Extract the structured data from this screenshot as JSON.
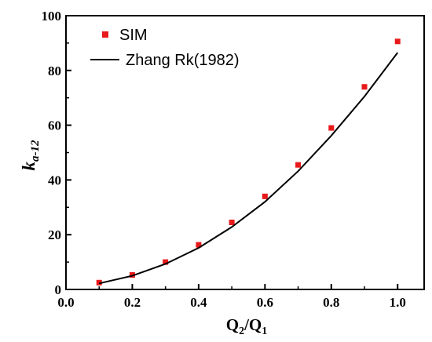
{
  "chart_data": {
    "type": "scatter",
    "xlabel": {
      "main": "Q",
      "sub1": "2",
      "slash": "/",
      "main2": "Q",
      "sub2": "1"
    },
    "ylabel": {
      "main": "k",
      "sub": "a-12"
    },
    "xlim": [
      0.0,
      1.08
    ],
    "ylim": [
      0,
      100
    ],
    "x_ticks": [
      "0.0",
      "0.2",
      "0.4",
      "0.6",
      "0.8",
      "1.0"
    ],
    "y_ticks": [
      "0",
      "20",
      "40",
      "60",
      "80",
      "100"
    ],
    "legend_position": "top-left",
    "series": [
      {
        "name": "SIM",
        "kind": "scatter",
        "color": "#e8191a",
        "x": [
          0.1,
          0.2,
          0.3,
          0.4,
          0.5,
          0.6,
          0.7,
          0.8,
          0.9,
          1.0
        ],
        "y": [
          2.5,
          5.3,
          10.0,
          16.3,
          24.5,
          34.0,
          45.5,
          59.0,
          74.0,
          90.6
        ]
      },
      {
        "name": "Zhang Rk(1982)",
        "kind": "line",
        "color": "#000000",
        "x": [
          0.1,
          0.2,
          0.3,
          0.4,
          0.5,
          0.6,
          0.7,
          0.8,
          0.9,
          1.0
        ],
        "y": [
          2.2,
          5.0,
          9.3,
          15.2,
          22.8,
          32.0,
          43.2,
          56.2,
          70.5,
          86.5
        ]
      }
    ]
  }
}
